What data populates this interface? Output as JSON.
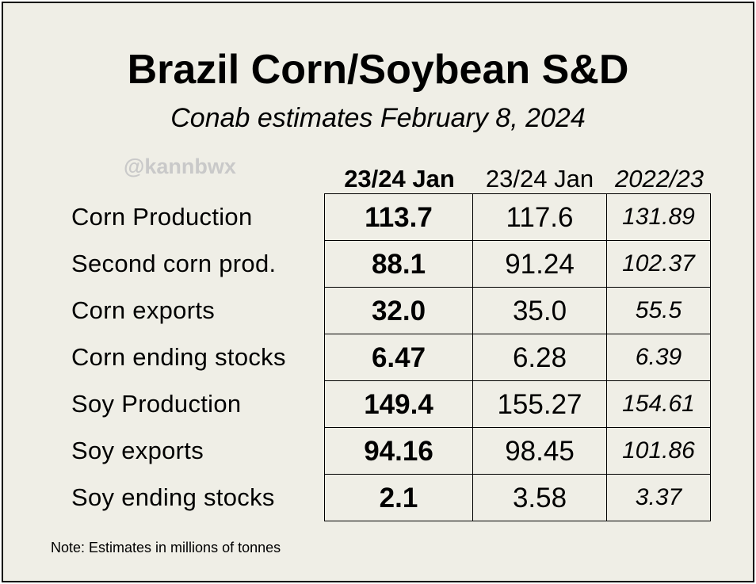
{
  "title": "Brazil Corn/Soybean S&D",
  "subtitle": "Conab estimates February 8, 2024",
  "watermark": "@kannbwx",
  "note": "Note: Estimates in millions of tonnes",
  "chart_data": {
    "type": "table",
    "title": "Brazil Corn/Soybean S&D",
    "subtitle": "Conab estimates February 8, 2024",
    "units": "millions of tonnes",
    "columns": [
      "23/24 Jan",
      "23/24 Jan",
      "2022/23"
    ],
    "rows": [
      {
        "label": "Corn Production",
        "values": [
          "113.7",
          "117.6",
          "131.89"
        ]
      },
      {
        "label": "Second corn prod.",
        "values": [
          "88.1",
          "91.24",
          "102.37"
        ]
      },
      {
        "label": "Corn exports",
        "values": [
          "32.0",
          "35.0",
          "55.5"
        ]
      },
      {
        "label": "Corn ending stocks",
        "values": [
          "6.47",
          "6.28",
          "6.39"
        ]
      },
      {
        "label": "Soy Production",
        "values": [
          "149.4",
          "155.27",
          "154.61"
        ]
      },
      {
        "label": "Soy exports",
        "values": [
          "94.16",
          "98.45",
          "101.86"
        ]
      },
      {
        "label": "Soy ending stocks",
        "values": [
          "2.1",
          "3.58",
          "3.37"
        ]
      }
    ]
  }
}
